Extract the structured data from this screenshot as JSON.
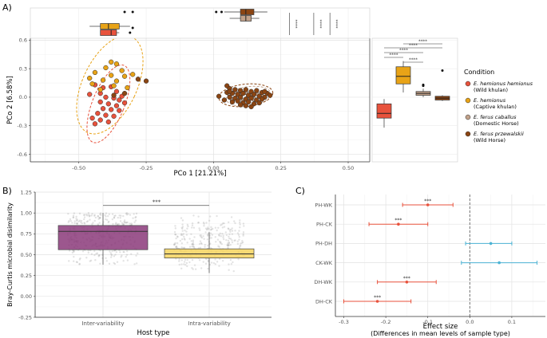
{
  "chart_data": [
    {
      "panel": "A)",
      "type": "scatter",
      "title": "",
      "xlabel": "PCo 1 [21.21%]",
      "ylabel": "PCo 2 [6.58%]",
      "xlim": [
        -0.68,
        0.58
      ],
      "ylim": [
        -0.68,
        0.62
      ],
      "x_ticks": [
        "-0.50",
        "-0.25",
        "0.00",
        "0.25",
        "0.50"
      ],
      "y_ticks": [
        "0.6",
        "0.3",
        "0.0",
        "-0.3",
        "-0.6"
      ],
      "legend_title": "Condition",
      "legend_position": "right",
      "legend": [
        {
          "line1": "E. hemionus hemionus",
          "line2": "(Wild khulan)",
          "color": "#e8523c"
        },
        {
          "line1": "E. hemionus",
          "line2": "(Captive khulan)",
          "color": "#e8a317"
        },
        {
          "line1": "E. ferus caballus",
          "line2": "(Domestic Horse)",
          "color": "#c2a28a"
        },
        {
          "line1": "E. ferus przewalskii",
          "line2": "(Wild Horse)",
          "color": "#8b4513"
        }
      ],
      "top_boxplots": {
        "axis": "PCo 1",
        "groups": [
          {
            "name": "Wild khulan",
            "q1": -0.42,
            "median": -0.38,
            "q3": -0.36,
            "color": "#e8523c"
          },
          {
            "name": "Captive khulan",
            "q1": -0.42,
            "median": -0.39,
            "q3": -0.35,
            "color": "#e8a317"
          },
          {
            "name": "Domestic Horse",
            "q1": 0.1,
            "median": 0.12,
            "q3": 0.14,
            "color": "#c2a28a"
          },
          {
            "name": "Wild Horse",
            "q1": 0.1,
            "median": 0.12,
            "q3": 0.15,
            "color": "#8b4513"
          }
        ],
        "significance": [
          "****",
          "****",
          "****"
        ]
      },
      "right_boxplots": {
        "axis": "PCo 2",
        "groups": [
          {
            "name": "Wild khulan",
            "q1": -0.22,
            "median": -0.17,
            "q3": -0.07,
            "color": "#e8523c"
          },
          {
            "name": "Captive khulan",
            "q1": 0.14,
            "median": 0.22,
            "q3": 0.32,
            "color": "#e8a317"
          },
          {
            "name": "Domestic Horse",
            "q1": 0.02,
            "median": 0.04,
            "q3": 0.06,
            "color": "#c2a28a"
          },
          {
            "name": "Wild Horse",
            "q1": -0.03,
            "median": -0.01,
            "q3": 0.01,
            "color": "#8b4513"
          }
        ],
        "significance": [
          "****",
          "****",
          "****",
          "****",
          "****"
        ]
      },
      "series": [
        {
          "name": "Wild khulan",
          "color": "#e8523c",
          "points": [
            [
              -0.44,
              0.13
            ],
            [
              -0.41,
              0.1
            ],
            [
              -0.38,
              0.11
            ],
            [
              -0.36,
              0.06
            ],
            [
              -0.42,
              0.04
            ],
            [
              -0.4,
              0.0
            ],
            [
              -0.37,
              -0.01
            ],
            [
              -0.35,
              -0.03
            ],
            [
              -0.42,
              -0.05
            ],
            [
              -0.39,
              -0.07
            ],
            [
              -0.36,
              -0.09
            ],
            [
              -0.41,
              -0.12
            ],
            [
              -0.38,
              -0.13
            ],
            [
              -0.35,
              -0.14
            ],
            [
              -0.43,
              -0.17
            ],
            [
              -0.4,
              -0.19
            ],
            [
              -0.37,
              -0.2
            ],
            [
              -0.45,
              -0.22
            ],
            [
              -0.42,
              -0.24
            ],
            [
              -0.39,
              -0.26
            ],
            [
              -0.44,
              -0.28
            ],
            [
              -0.34,
              0.01
            ],
            [
              -0.33,
              -0.06
            ],
            [
              -0.46,
              0.03
            ]
          ]
        },
        {
          "name": "Captive khulan",
          "color": "#e8a317",
          "points": [
            [
              -0.38,
              0.37
            ],
            [
              -0.36,
              0.35
            ],
            [
              -0.4,
              0.31
            ],
            [
              -0.34,
              0.28
            ],
            [
              -0.44,
              0.26
            ],
            [
              -0.38,
              0.23
            ],
            [
              -0.33,
              0.22
            ],
            [
              -0.46,
              0.2
            ],
            [
              -0.41,
              0.18
            ],
            [
              -0.36,
              0.17
            ],
            [
              -0.45,
              0.14
            ],
            [
              -0.37,
              0.12
            ],
            [
              -0.32,
              0.1
            ],
            [
              -0.42,
              0.08
            ],
            [
              -0.3,
              0.24
            ]
          ]
        },
        {
          "name": "Domestic Horse",
          "color": "#c2a28a",
          "points": [
            [
              0.08,
              0.06
            ],
            [
              0.12,
              0.05
            ],
            [
              0.16,
              0.04
            ],
            [
              0.06,
              0.03
            ],
            [
              0.1,
              0.02
            ],
            [
              0.14,
              0.03
            ],
            [
              0.18,
              0.01
            ],
            [
              0.09,
              -0.01
            ],
            [
              0.13,
              0.0
            ],
            [
              0.07,
              -0.03
            ],
            [
              0.15,
              -0.02
            ],
            [
              0.11,
              -0.04
            ]
          ]
        },
        {
          "name": "Wild Horse",
          "color": "#8b4513",
          "points": [
            [
              -0.37,
              0.02
            ],
            [
              -0.33,
              0.04
            ],
            [
              -0.28,
              0.19
            ],
            [
              -0.25,
              0.17
            ],
            [
              0.02,
              0.01
            ],
            [
              0.05,
              0.12
            ],
            [
              0.06,
              0.09
            ],
            [
              0.08,
              0.08
            ],
            [
              0.1,
              0.07
            ],
            [
              0.12,
              0.08
            ],
            [
              0.14,
              0.06
            ],
            [
              0.16,
              0.07
            ],
            [
              0.18,
              0.05
            ],
            [
              0.2,
              0.04
            ],
            [
              0.21,
              0.02
            ],
            [
              0.05,
              0.05
            ],
            [
              0.07,
              0.04
            ],
            [
              0.09,
              0.03
            ],
            [
              0.11,
              0.04
            ],
            [
              0.13,
              0.02
            ],
            [
              0.15,
              0.03
            ],
            [
              0.17,
              0.01
            ],
            [
              0.19,
              0.0
            ],
            [
              0.06,
              0.0
            ],
            [
              0.08,
              -0.01
            ],
            [
              0.1,
              0.0
            ],
            [
              0.12,
              -0.02
            ],
            [
              0.14,
              -0.01
            ],
            [
              0.16,
              -0.03
            ],
            [
              0.18,
              -0.02
            ],
            [
              0.07,
              -0.05
            ],
            [
              0.09,
              -0.04
            ],
            [
              0.11,
              -0.06
            ],
            [
              0.13,
              -0.05
            ],
            [
              0.15,
              -0.07
            ],
            [
              0.17,
              -0.06
            ],
            [
              0.1,
              -0.08
            ],
            [
              0.12,
              -0.09
            ],
            [
              0.14,
              -0.1
            ],
            [
              0.04,
              -0.03
            ],
            [
              0.06,
              0.06
            ],
            [
              0.19,
              0.06
            ]
          ]
        }
      ]
    },
    {
      "panel": "B)",
      "type": "box",
      "xlabel": "Host type",
      "ylabel": "Bray-Curtis microbial disimilarity",
      "ylim": [
        -0.25,
        1.25
      ],
      "y_ticks": [
        "1.25",
        "1.00",
        "0.75",
        "0.50",
        "0.25",
        "0.00",
        "-0.25"
      ],
      "categories": [
        "Inter-variability",
        "Intra-variability"
      ],
      "boxes": [
        {
          "name": "Inter-variability",
          "whisker_low": 0.38,
          "q1": 0.56,
          "median": 0.78,
          "q3": 0.85,
          "whisker_high": 1.0,
          "color": "#8b3a7a"
        },
        {
          "name": "Intra-variability",
          "whisker_low": 0.28,
          "q1": 0.46,
          "median": 0.51,
          "q3": 0.57,
          "whisker_high": 0.77,
          "color": "#f4d35e"
        }
      ],
      "significance": "***"
    },
    {
      "panel": "C)",
      "type": "errorbar",
      "xlabel": "Effect size",
      "xlabel2": "(Differences in mean levels of sample type)",
      "xlim": [
        -0.32,
        0.18
      ],
      "x_ticks": [
        "-0.3",
        "-0.2",
        "-0.1",
        "0.0",
        "0.1"
      ],
      "rows": [
        {
          "label": "PH-WK",
          "estimate": -0.1,
          "low": -0.16,
          "high": -0.04,
          "sig": "***",
          "color": "#e8523c"
        },
        {
          "label": "PH-CK",
          "estimate": -0.17,
          "low": -0.24,
          "high": -0.1,
          "sig": "***",
          "color": "#e8523c"
        },
        {
          "label": "PH-DH",
          "estimate": 0.05,
          "low": -0.01,
          "high": 0.1,
          "sig": "",
          "color": "#4bb3d4"
        },
        {
          "label": "CK-WK",
          "estimate": 0.07,
          "low": -0.02,
          "high": 0.16,
          "sig": "",
          "color": "#4bb3d4"
        },
        {
          "label": "DH-WK",
          "estimate": -0.15,
          "low": -0.22,
          "high": -0.08,
          "sig": "***",
          "color": "#e8523c"
        },
        {
          "label": "DH-CK",
          "estimate": -0.22,
          "low": -0.3,
          "high": -0.14,
          "sig": "***",
          "color": "#e8523c"
        }
      ]
    }
  ]
}
